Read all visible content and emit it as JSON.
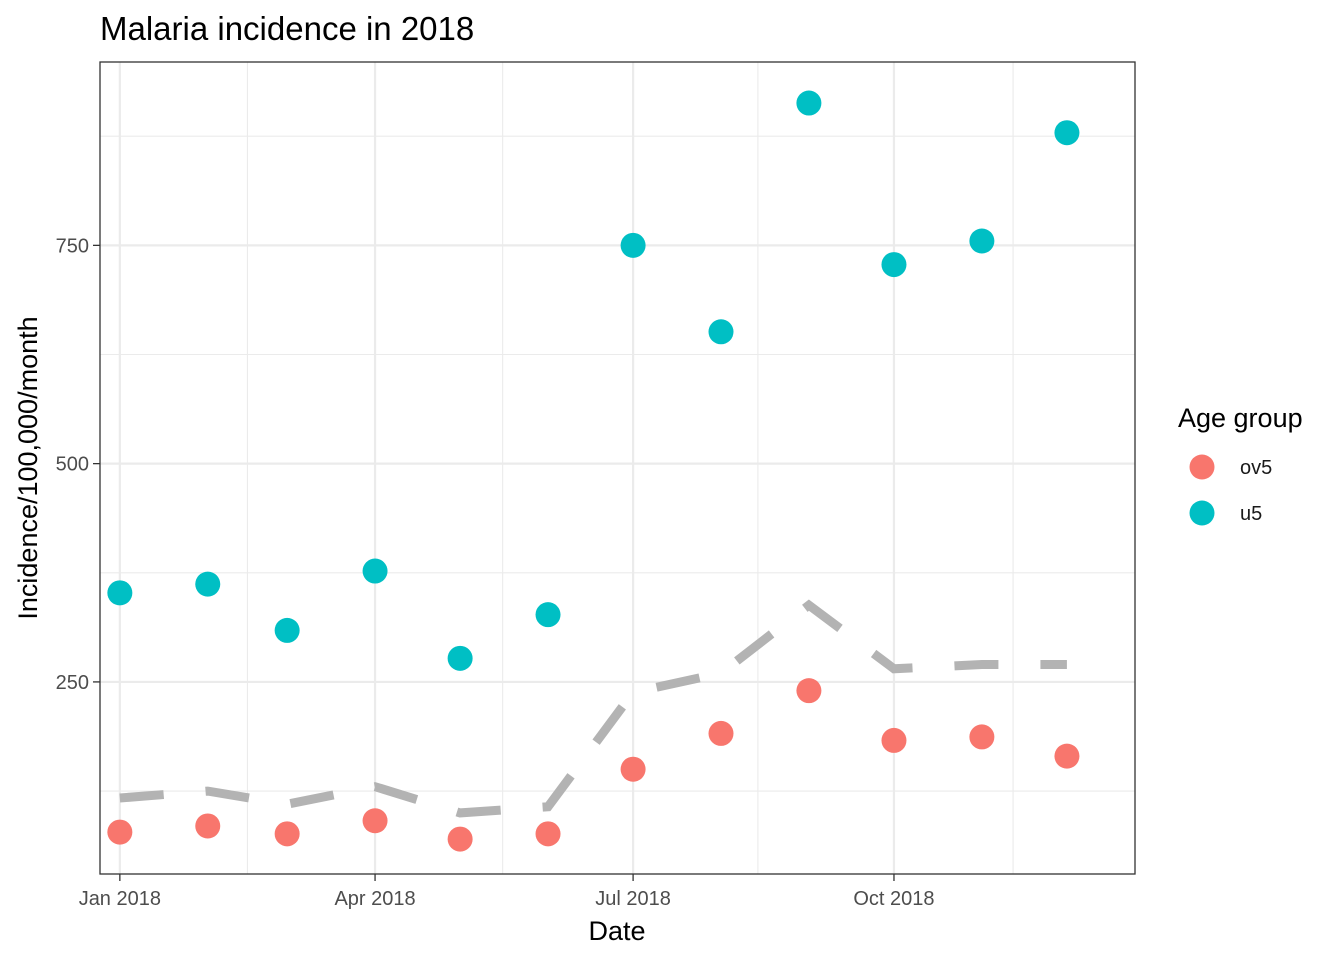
{
  "chart_data": {
    "type": "scatter",
    "title": "Malaria incidence in 2018",
    "xlabel": "Date",
    "ylabel": "Incidence/100,000/month",
    "x": [
      "2018-01-01",
      "2018-02-01",
      "2018-03-01",
      "2018-04-01",
      "2018-05-01",
      "2018-06-01",
      "2018-07-01",
      "2018-08-01",
      "2018-09-01",
      "2018-10-01",
      "2018-11-01",
      "2018-12-01"
    ],
    "x_ticks": [
      {
        "date": "2018-01-01",
        "label": "Jan 2018"
      },
      {
        "date": "2018-04-01",
        "label": "Apr 2018"
      },
      {
        "date": "2018-07-01",
        "label": "Jul 2018"
      },
      {
        "date": "2018-10-01",
        "label": "Oct 2018"
      }
    ],
    "xlim": [
      "2017-12-25",
      "2018-12-25"
    ],
    "y_ticks": [
      250,
      500,
      750
    ],
    "ylim": [
      30,
      960
    ],
    "grid": true,
    "legend_title": "Age group",
    "legend_position": "right",
    "series": [
      {
        "name": "ov5",
        "color": "#F8766D",
        "values": [
          78,
          85,
          76,
          91,
          70,
          76,
          150,
          191,
          240,
          183,
          187,
          165
        ]
      },
      {
        "name": "u5",
        "color": "#00BFC4",
        "values": [
          352,
          362,
          309,
          377,
          277,
          327,
          750,
          651,
          913,
          728,
          755,
          879
        ]
      }
    ],
    "reference_line": {
      "style": "dashed",
      "color": "#b3b3b3",
      "values": [
        117,
        125,
        110,
        130,
        100,
        107,
        238,
        260,
        338,
        265,
        270,
        270
      ]
    }
  }
}
